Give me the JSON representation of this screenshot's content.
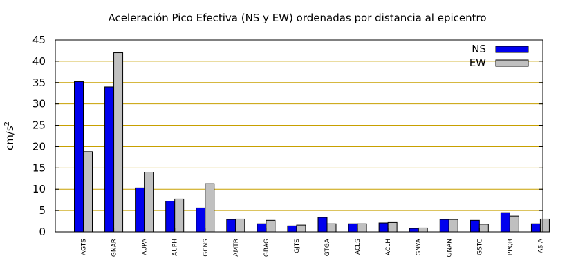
{
  "chart_data": {
    "type": "bar",
    "title": "Aceleración Pico Efectiva (NS y EW) ordenadas por distancia al epicentro",
    "ylabel_base": "cm/s",
    "ylabel_exp": "2",
    "xlabel": "",
    "ylim": [
      0,
      45
    ],
    "yticks": [
      0,
      5,
      10,
      15,
      20,
      25,
      30,
      35,
      40,
      45
    ],
    "grid": "horizontal",
    "legend_position": "top-right",
    "categories": [
      "AGTS",
      "GNAR",
      "AUPA",
      "AUPH",
      "GCNS",
      "AMTR",
      "GBAG",
      "GJTS",
      "GTGA",
      "ACLS",
      "ACLH",
      "GNYA",
      "GNAN",
      "GSTC",
      "PPQR",
      "ASIA"
    ],
    "series": [
      {
        "name": "NS",
        "color": "#0000ee",
        "values": [
          35.2,
          34.0,
          10.3,
          7.2,
          5.6,
          2.9,
          1.9,
          1.4,
          3.4,
          1.9,
          2.1,
          0.8,
          2.9,
          2.7,
          4.5,
          1.9
        ]
      },
      {
        "name": "EW",
        "color": "#c0c0c0",
        "values": [
          18.8,
          42.0,
          14.0,
          7.7,
          11.3,
          3.0,
          2.7,
          1.6,
          1.9,
          1.9,
          2.2,
          0.9,
          2.9,
          1.8,
          3.7,
          3.0
        ]
      }
    ],
    "colors": {
      "grid": "#c8a000",
      "axis": "#000000"
    }
  }
}
